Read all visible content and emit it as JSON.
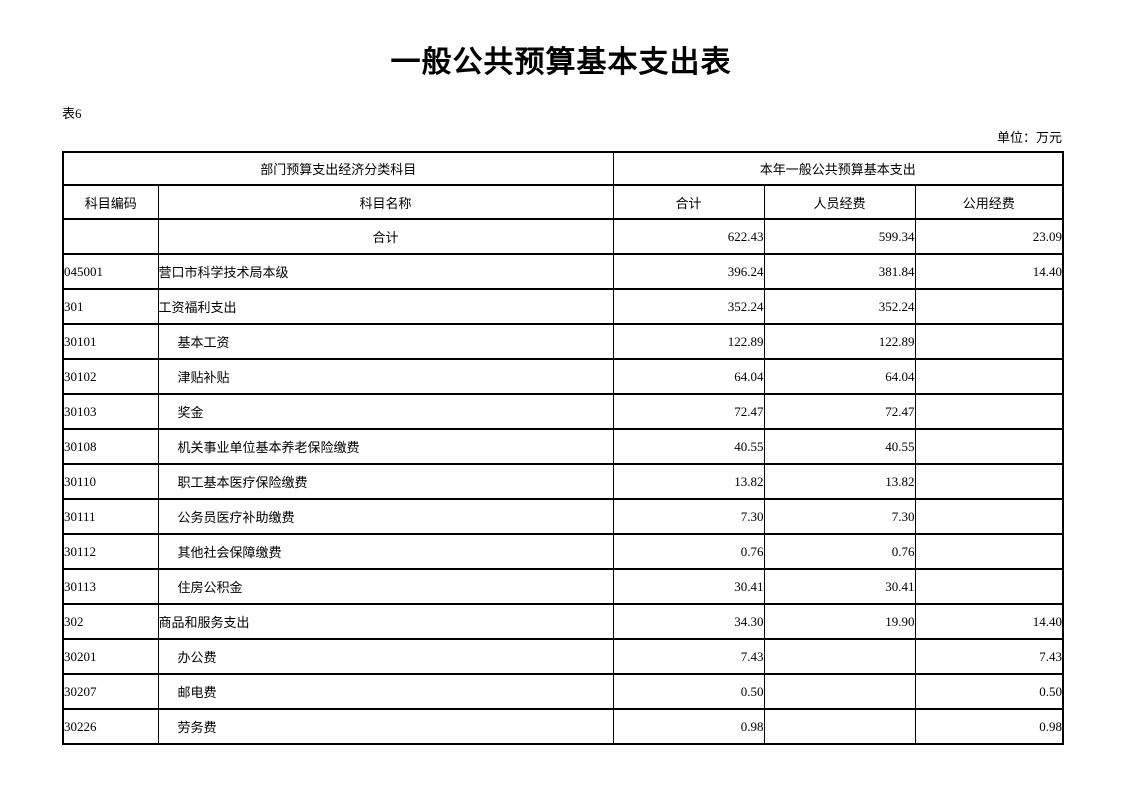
{
  "page": {
    "title": "一般公共预算基本支出表",
    "table_label": "表6",
    "unit_label": "单位：万元"
  },
  "table": {
    "header_row1": [
      "部门预算支出经济分类科目",
      "本年一般公共预算基本支出"
    ],
    "header_row2": [
      "科目编码",
      "科目名称",
      "合计",
      "人员经费",
      "公用经费"
    ],
    "rows": [
      {
        "code": "",
        "name": "合计",
        "total": "622.43",
        "personnel": "599.34",
        "public": "23.09",
        "indent": false,
        "name_center": true
      },
      {
        "code": "045001",
        "name": "营口市科学技术局本级",
        "total": "396.24",
        "personnel": "381.84",
        "public": "14.40",
        "indent": false,
        "name_center": false
      },
      {
        "code": "301",
        "name": "工资福利支出",
        "total": "352.24",
        "personnel": "352.24",
        "public": "",
        "indent": false,
        "name_center": false
      },
      {
        "code": "30101",
        "name": "基本工资",
        "total": "122.89",
        "personnel": "122.89",
        "public": "",
        "indent": true,
        "name_center": false
      },
      {
        "code": "30102",
        "name": "津贴补贴",
        "total": "64.04",
        "personnel": "64.04",
        "public": "",
        "indent": true,
        "name_center": false
      },
      {
        "code": "30103",
        "name": "奖金",
        "total": "72.47",
        "personnel": "72.47",
        "public": "",
        "indent": true,
        "name_center": false
      },
      {
        "code": "30108",
        "name": "机关事业单位基本养老保险缴费",
        "total": "40.55",
        "personnel": "40.55",
        "public": "",
        "indent": true,
        "name_center": false
      },
      {
        "code": "30110",
        "name": "职工基本医疗保险缴费",
        "total": "13.82",
        "personnel": "13.82",
        "public": "",
        "indent": true,
        "name_center": false
      },
      {
        "code": "30111",
        "name": "公务员医疗补助缴费",
        "total": "7.30",
        "personnel": "7.30",
        "public": "",
        "indent": true,
        "name_center": false
      },
      {
        "code": "30112",
        "name": "其他社会保障缴费",
        "total": "0.76",
        "personnel": "0.76",
        "public": "",
        "indent": true,
        "name_center": false
      },
      {
        "code": "30113",
        "name": "住房公积金",
        "total": "30.41",
        "personnel": "30.41",
        "public": "",
        "indent": true,
        "name_center": false
      },
      {
        "code": "302",
        "name": "商品和服务支出",
        "total": "34.30",
        "personnel": "19.90",
        "public": "14.40",
        "indent": false,
        "name_center": false
      },
      {
        "code": "30201",
        "name": "办公费",
        "total": "7.43",
        "personnel": "",
        "public": "7.43",
        "indent": true,
        "name_center": false
      },
      {
        "code": "30207",
        "name": "邮电费",
        "total": "0.50",
        "personnel": "",
        "public": "0.50",
        "indent": true,
        "name_center": false
      },
      {
        "code": "30226",
        "name": "劳务费",
        "total": "0.98",
        "personnel": "",
        "public": "0.98",
        "indent": true,
        "name_center": false
      }
    ]
  }
}
